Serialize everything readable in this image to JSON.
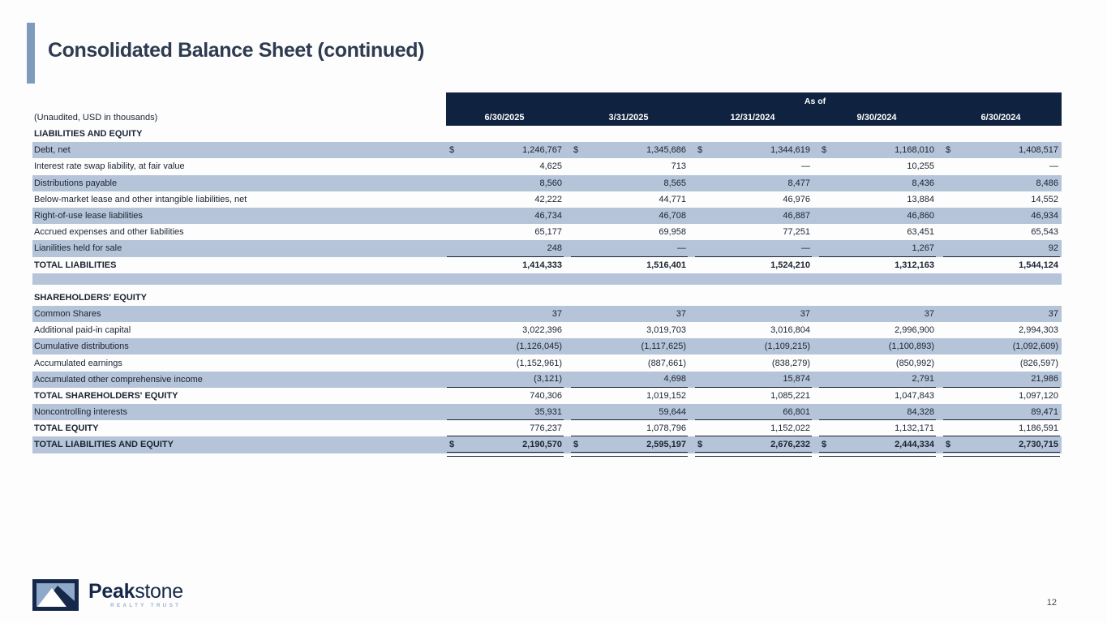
{
  "page": {
    "title": "Consolidated Balance Sheet (continued)",
    "page_number": "12"
  },
  "logo": {
    "brand_bold": "Peak",
    "brand_light": "stone",
    "subtitle": "REALTY TRUST",
    "mark_icon": "mountain-peak-icon"
  },
  "colors": {
    "header_bg": "#0f2240",
    "row_shade": "#b5c4d8",
    "accent_bar": "#7f9cbe",
    "title_text": "#2e3b50",
    "table_text": "#1b2433",
    "line": "#1a2433",
    "logo_navy": "#15284a",
    "logo_sky": "#8fa9c9",
    "logo_subtitle": "#9fb3cc",
    "page_bg": "#fdfdfd"
  },
  "table": {
    "unaudited_note": "(Unaudited, USD in thousands)",
    "as_of_label": "As of",
    "currency_symbol": "$",
    "columns": [
      "6/30/2025",
      "3/31/2025",
      "12/31/2024",
      "9/30/2024",
      "6/30/2024"
    ],
    "rows": [
      {
        "type": "section",
        "label": "LIABILITIES AND EQUITY",
        "bold": true
      },
      {
        "label": "Debt, net",
        "shaded": true,
        "dollar": true,
        "values": [
          "1,246,767",
          "1,345,686",
          "1,344,619",
          "1,168,010",
          "1,408,517"
        ]
      },
      {
        "label": "Interest rate swap liability, at fair value",
        "values": [
          "4,625",
          "713",
          "—",
          "10,255",
          "—"
        ]
      },
      {
        "label": "Distributions payable",
        "shaded": true,
        "values": [
          "8,560",
          "8,565",
          "8,477",
          "8,436",
          "8,486"
        ]
      },
      {
        "label": "Below-market lease and other intangible liabilities, net",
        "values": [
          "42,222",
          "44,771",
          "46,976",
          "13,884",
          "14,552"
        ]
      },
      {
        "label": "Right-of-use lease liabilities",
        "shaded": true,
        "values": [
          "46,734",
          "46,708",
          "46,887",
          "46,860",
          "46,934"
        ]
      },
      {
        "label": "Accrued expenses and other liabilities",
        "values": [
          "65,177",
          "69,958",
          "77,251",
          "63,451",
          "65,543"
        ]
      },
      {
        "label": "Lianilities held for sale",
        "shaded": true,
        "underline": true,
        "values": [
          "248",
          "—",
          "—",
          "1,267",
          "92"
        ]
      },
      {
        "label": "TOTAL LIABILITIES",
        "bold": true,
        "bold_values": true,
        "values": [
          "1,414,333",
          "1,516,401",
          "1,524,210",
          "1,312,163",
          "1,544,124"
        ]
      },
      {
        "type": "spacer",
        "shaded": true
      },
      {
        "type": "spacer2"
      },
      {
        "type": "section",
        "label": "SHAREHOLDERS' EQUITY",
        "bold": true
      },
      {
        "label": "Common Shares",
        "shaded": true,
        "values": [
          "37",
          "37",
          "37",
          "37",
          "37"
        ]
      },
      {
        "label": "Additional paid-in capital",
        "values": [
          "3,022,396",
          "3,019,703",
          "3,016,804",
          "2,996,900",
          "2,994,303"
        ]
      },
      {
        "label": "Cumulative distributions",
        "shaded": true,
        "values": [
          "(1,126,045)",
          "(1,117,625)",
          "(1,109,215)",
          "(1,100,893)",
          "(1,092,609)"
        ]
      },
      {
        "label": "Accumulated earnings",
        "values": [
          "(1,152,961)",
          "(887,661)",
          "(838,279)",
          "(850,992)",
          "(826,597)"
        ]
      },
      {
        "label": "Accumulated other comprehensive income",
        "shaded": true,
        "underline": true,
        "values": [
          "(3,121)",
          "4,698",
          "15,874",
          "2,791",
          "21,986"
        ]
      },
      {
        "label": "TOTAL SHAREHOLDERS' EQUITY",
        "bold": true,
        "values": [
          "740,306",
          "1,019,152",
          "1,085,221",
          "1,047,843",
          "1,097,120"
        ]
      },
      {
        "label": "Noncontrolling interests",
        "shaded": true,
        "underline": true,
        "values": [
          "35,931",
          "59,644",
          "66,801",
          "84,328",
          "89,471"
        ]
      },
      {
        "label": "TOTAL EQUITY",
        "bold": true,
        "underline": true,
        "values": [
          "776,237",
          "1,078,796",
          "1,152,022",
          "1,132,171",
          "1,186,591"
        ]
      },
      {
        "label": "TOTAL LIABILITIES AND EQUITY",
        "bold": true,
        "bold_values": true,
        "shaded": true,
        "dollar": true,
        "double_underline": true,
        "values": [
          "2,190,570",
          "2,595,197",
          "2,676,232",
          "2,444,334",
          "2,730,715"
        ]
      }
    ]
  }
}
